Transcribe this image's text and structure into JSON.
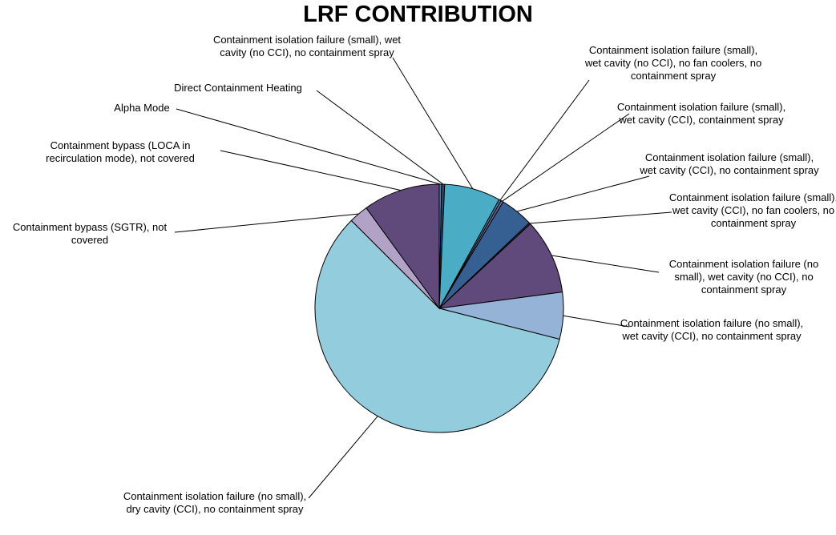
{
  "chart_data": {
    "type": "pie",
    "title": "LRF CONTRIBUTION",
    "categories": [
      "Alpha Mode",
      "Direct Containment Heating",
      "Containment isolation failure (small), wet cavity (no CCI), no containment spray",
      "Containment isolation failure (small), wet cavity (no CCI), no fan coolers, no containment spray",
      "Containment isolation failure (small), wet cavity (CCI), containment spray",
      "Containment isolation failure (small), wet cavity (CCI), no containment spray",
      "Containment isolation failure (small), wet cavity (CCI), no fan coolers, no containment spray",
      "Containment isolation failure (no small), wet cavity (no CCI), no containment spray",
      "Containment isolation failure (no small), wet cavity (CCI), no containment spray",
      "Containment isolation failure (no small), dry cavity (CCI), no containment spray",
      "Containment bypass (SGTR), not covered",
      "Containment bypass (LOCA in recirculation mode), not covered"
    ],
    "values": [
      0.3,
      0.4,
      7.3,
      0.3,
      0.3,
      4.3,
      0.2,
      9.8,
      6.1,
      58.5,
      2.5,
      10.0
    ],
    "colors": [
      "#4f81bd",
      "#1f497d",
      "#4bacc6",
      "#31859c",
      "#8064a2",
      "#376092",
      "#403151",
      "#604a7b",
      "#95b3d7",
      "#93cddd",
      "#b3a2c7",
      "#604a7b"
    ]
  }
}
